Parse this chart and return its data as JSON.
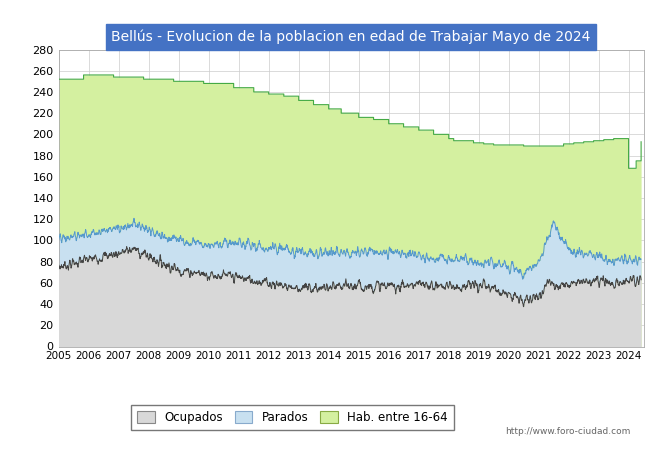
{
  "title": "Bellús - Evolucion de la poblacion en edad de Trabajar Mayo de 2024",
  "title_bg_color": "#4472c4",
  "title_text_color": "#ffffff",
  "ylabel_values": [
    0,
    20,
    40,
    60,
    80,
    100,
    120,
    140,
    160,
    180,
    200,
    220,
    240,
    260,
    280
  ],
  "color_hab": "#d4f0a0",
  "color_parados_fill": "#c8e0f0",
  "color_ocupados_fill": "#d8d8d8",
  "color_ocupados_line": "#444444",
  "color_parados_line": "#5599cc",
  "color_hab_line": "#44aa44",
  "url_text": "http://www.foro-ciudad.com",
  "legend_labels": [
    "Ocupados",
    "Parados",
    "Hab. entre 16-64"
  ],
  "ylim": [
    0,
    280
  ],
  "xlim_start": 2005,
  "xlim_end": 2024.5
}
